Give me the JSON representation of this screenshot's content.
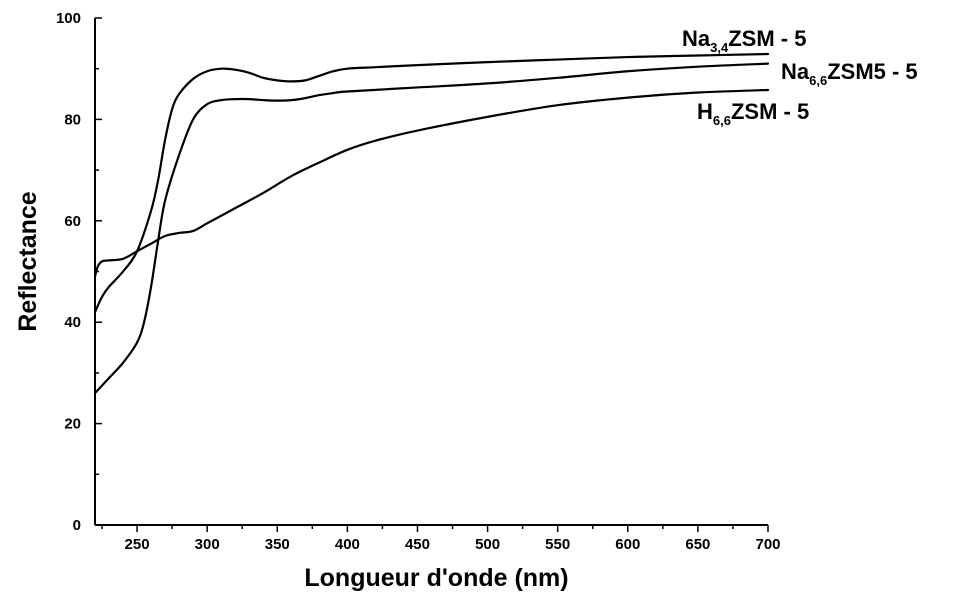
{
  "chart_data": {
    "type": "line",
    "title": "",
    "xlabel": "Longueur d'onde (nm)",
    "ylabel": "Reflectance",
    "xlim": [
      220,
      700
    ],
    "ylim": [
      0,
      100
    ],
    "xticks": [
      250,
      300,
      350,
      400,
      450,
      500,
      550,
      600,
      650,
      700
    ],
    "yticks": [
      0,
      20,
      40,
      60,
      80,
      100
    ],
    "grid": false,
    "legend": "inline-right",
    "series": [
      {
        "name": "Na3,4ZSM - 5",
        "label_main": "Na",
        "label_sub": "3,4",
        "label_rest": "ZSM - 5",
        "x": [
          220,
          225,
          230,
          240,
          250,
          260,
          265,
          270,
          275,
          280,
          290,
          300,
          310,
          320,
          330,
          340,
          350,
          360,
          370,
          380,
          390,
          400,
          420,
          450,
          500,
          550,
          600,
          650,
          700
        ],
        "y": [
          42,
          45,
          47,
          50,
          54,
          62,
          68,
          76,
          82,
          85,
          88,
          89.5,
          90,
          89.8,
          89.2,
          88.2,
          87.7,
          87.5,
          87.7,
          88.6,
          89.5,
          90,
          90.3,
          90.7,
          91.3,
          91.8,
          92.3,
          92.6,
          92.9
        ]
      },
      {
        "name": "Na6,6ZSM5 - 5",
        "label_main": "Na",
        "label_sub": "6,6",
        "label_rest": "ZSM5 - 5",
        "x": [
          220,
          230,
          240,
          250,
          255,
          260,
          265,
          270,
          280,
          290,
          300,
          310,
          320,
          330,
          340,
          350,
          360,
          370,
          380,
          390,
          400,
          450,
          500,
          550,
          600,
          650,
          700
        ],
        "y": [
          26,
          29,
          32,
          36,
          40,
          47,
          56,
          64,
          73,
          80,
          83,
          83.8,
          84,
          84,
          83.8,
          83.7,
          83.8,
          84.2,
          84.8,
          85.2,
          85.5,
          86.3,
          87.1,
          88.2,
          89.5,
          90.4,
          91
        ]
      },
      {
        "name": "H6,6ZSM - 5",
        "label_main": "H",
        "label_sub": "6,6",
        "label_rest": "ZSM - 5",
        "x": [
          220,
          222,
          225,
          230,
          240,
          250,
          260,
          270,
          280,
          290,
          300,
          320,
          340,
          360,
          380,
          400,
          420,
          450,
          500,
          550,
          600,
          650,
          700
        ],
        "y": [
          49,
          51,
          52,
          52.2,
          52.5,
          54,
          55.5,
          57,
          57.6,
          58,
          59.5,
          62.5,
          65.5,
          68.8,
          71.5,
          74,
          75.8,
          77.8,
          80.5,
          82.8,
          84.3,
          85.3,
          85.8
        ]
      }
    ]
  }
}
